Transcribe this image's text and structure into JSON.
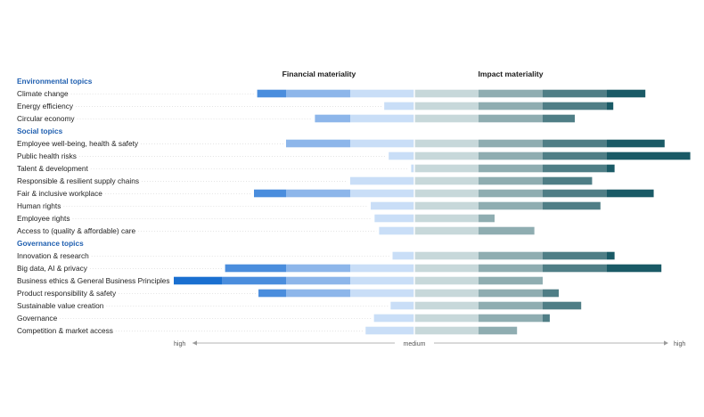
{
  "chart_data": {
    "type": "bar",
    "subtype": "diverging-stacked-horizontal",
    "headers": {
      "financial": "Financial materiality",
      "impact": "Impact materiality"
    },
    "scale": {
      "bands": 4,
      "left_label": "high",
      "center_label": "medium",
      "right_label": "high",
      "min": 0,
      "max": 4.3
    },
    "colors": {
      "financial": [
        "#c9def7",
        "#8db6ea",
        "#4a8ddd",
        "#1a6fd0"
      ],
      "impact": [
        "#c7d8da",
        "#8fadb1",
        "#4f7e86",
        "#1a5a66"
      ],
      "group_label": "#1f5fb0",
      "leader": "#c8c8c8",
      "axis": "#9a9a9a"
    },
    "groups": [
      {
        "name": "Environmental topics",
        "topics": [
          {
            "label": "Climate change",
            "financial": 2.45,
            "impact": 3.6
          },
          {
            "label": "Energy efficiency",
            "financial": 0.47,
            "impact": 3.1
          },
          {
            "label": "Circular economy",
            "financial": 1.55,
            "impact": 2.5
          }
        ]
      },
      {
        "name": "Social topics",
        "topics": [
          {
            "label": "Employee well-being, health & safety",
            "financial": 2.0,
            "impact": 3.9
          },
          {
            "label": "Public health risks",
            "financial": 0.4,
            "impact": 4.3
          },
          {
            "label": "Talent & development",
            "financial": 0.05,
            "impact": 3.12
          },
          {
            "label": "Responsible & resilient supply chains",
            "financial": 1.0,
            "impact": 2.77
          },
          {
            "label": "Fair & inclusive workplace",
            "financial": 2.5,
            "impact": 3.73
          },
          {
            "label": "Human rights",
            "financial": 0.68,
            "impact": 2.9
          },
          {
            "label": "Employee rights",
            "financial": 0.62,
            "impact": 1.25
          },
          {
            "label": "Access to (quality & affordable) care",
            "financial": 0.55,
            "impact": 1.87
          }
        ]
      },
      {
        "name": "Governance topics",
        "topics": [
          {
            "label": "Innovation & research",
            "financial": 0.34,
            "impact": 3.12
          },
          {
            "label": "Big data, AI & privacy",
            "financial": 2.95,
            "impact": 3.85
          },
          {
            "label": "Business ethics & General Business Principles",
            "financial": 3.75,
            "impact": 2.0
          },
          {
            "label": "Product responsibility & safety",
            "financial": 2.43,
            "impact": 2.25
          },
          {
            "label": "Sustainable value creation",
            "financial": 0.37,
            "impact": 2.6
          },
          {
            "label": "Governance",
            "financial": 0.63,
            "impact": 2.11
          },
          {
            "label": "Competition & market access",
            "financial": 0.76,
            "impact": 1.6
          }
        ]
      }
    ]
  }
}
